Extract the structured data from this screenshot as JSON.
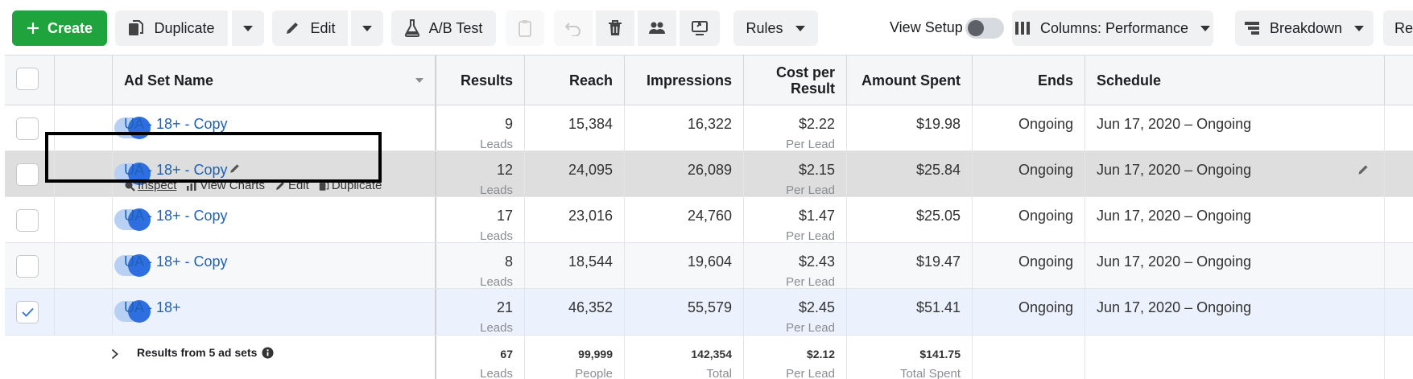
{
  "toolbar": {
    "create_label": "Create",
    "duplicate_label": "Duplicate",
    "edit_label": "Edit",
    "abtest_label": "A/B Test",
    "rules_label": "Rules",
    "view_setup_label": "View Setup",
    "view_setup_on": false,
    "columns_label": "Columns: Performance",
    "breakdown_label": "Breakdown",
    "reports_label": "Re"
  },
  "colors": {
    "create_green": "#1fa33d",
    "link_blue": "#1d62b8",
    "toggle_blue": "#2e6ee0",
    "hover_row": "#dedede",
    "selected_row": "#ebf2fd"
  },
  "table": {
    "columns": {
      "name": "Ad Set Name",
      "results": "Results",
      "reach": "Reach",
      "impressions": "Impressions",
      "cost_line1": "Cost per",
      "cost_line2": "Result",
      "amount": "Amount Spent",
      "ends": "Ends",
      "schedule": "Schedule"
    },
    "rows": [
      {
        "name": "UA - 18+ - Copy",
        "results": "9",
        "results_unit": "Leads",
        "reach": "15,384",
        "impressions": "16,322",
        "cost": "$2.22",
        "cost_unit": "Per Lead",
        "amount": "$19.98",
        "ends": "Ongoing",
        "schedule": "Jun 17, 2020 – Ongoing",
        "checked": false,
        "active": true
      },
      {
        "name": "UA - 18+ - Copy",
        "results": "12",
        "results_unit": "Leads",
        "reach": "24,095",
        "impressions": "26,089",
        "cost": "$2.15",
        "cost_unit": "Per Lead",
        "amount": "$25.84",
        "ends": "Ongoing",
        "schedule": "Jun 17, 2020 – Ongoing",
        "checked": false,
        "active": true
      },
      {
        "name": "UA - 18+ - Copy",
        "results": "17",
        "results_unit": "Leads",
        "reach": "23,016",
        "impressions": "24,760",
        "cost": "$1.47",
        "cost_unit": "Per Lead",
        "amount": "$25.05",
        "ends": "Ongoing",
        "schedule": "Jun 17, 2020 – Ongoing",
        "checked": false,
        "active": true
      },
      {
        "name": "UA - 18+ - Copy",
        "results": "8",
        "results_unit": "Leads",
        "reach": "18,544",
        "impressions": "19,604",
        "cost": "$2.43",
        "cost_unit": "Per Lead",
        "amount": "$19.47",
        "ends": "Ongoing",
        "schedule": "Jun 17, 2020 – Ongoing",
        "checked": false,
        "active": true
      },
      {
        "name": "UA - 18+",
        "results": "21",
        "results_unit": "Leads",
        "reach": "46,352",
        "impressions": "55,579",
        "cost": "$2.45",
        "cost_unit": "Per Lead",
        "amount": "$51.41",
        "ends": "Ongoing",
        "schedule": "Jun 17, 2020 – Ongoing",
        "checked": true,
        "active": true
      }
    ],
    "hover_actions": {
      "inspect": "Inspect",
      "view_charts": "View Charts",
      "edit": "Edit",
      "duplicate": "Duplicate"
    },
    "footer": {
      "label": "Results from 5 ad sets",
      "results": "67",
      "results_unit": "Leads",
      "reach": "99,999",
      "reach_unit": "People",
      "impressions": "142,354",
      "impressions_unit": "Total",
      "cost": "$2.12",
      "cost_unit": "Per Lead",
      "amount": "$141.75",
      "amount_unit": "Total Spent"
    }
  }
}
